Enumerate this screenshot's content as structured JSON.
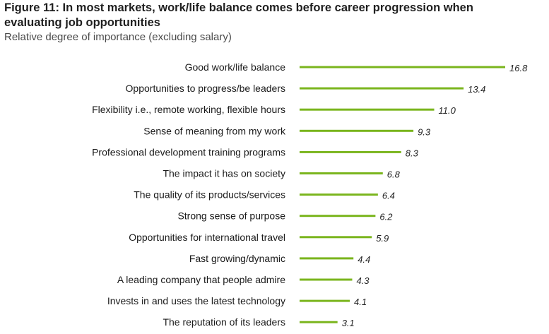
{
  "title": "Figure 11: In most markets, work/life balance comes before career progression when evaluating job opportunities",
  "subtitle": "Relative degree of importance (excluding salary)",
  "colors": {
    "bar": "#7ab51d"
  },
  "chart_data": {
    "type": "bar",
    "orientation": "horizontal",
    "title": "Figure 11: In most markets, work/life balance comes before career progression when evaluating job opportunities",
    "subtitle": "Relative degree of importance (excluding salary)",
    "categories": [
      "Good work/life balance",
      "Opportunities to progress/be leaders",
      "Flexibility i.e., remote working, flexible hours",
      "Sense of meaning from my work",
      "Professional development training programs",
      "The impact it has on society",
      "The quality of its products/services",
      "Strong sense of purpose",
      "Opportunities for international travel",
      "Fast growing/dynamic",
      "A leading company that people admire",
      "Invests in and uses the latest technology",
      "The reputation of its leaders"
    ],
    "values": [
      16.8,
      13.4,
      11.0,
      9.3,
      8.3,
      6.8,
      6.4,
      6.2,
      5.9,
      4.4,
      4.3,
      4.1,
      3.1
    ],
    "value_labels": [
      "16.8",
      "13.4",
      "11.0",
      "9.3",
      "8.3",
      "6.8",
      "6.4",
      "6.2",
      "5.9",
      "4.4",
      "4.3",
      "4.1",
      "3.1"
    ],
    "xlim": [
      0,
      16.8
    ],
    "grid": false,
    "legend": false
  }
}
